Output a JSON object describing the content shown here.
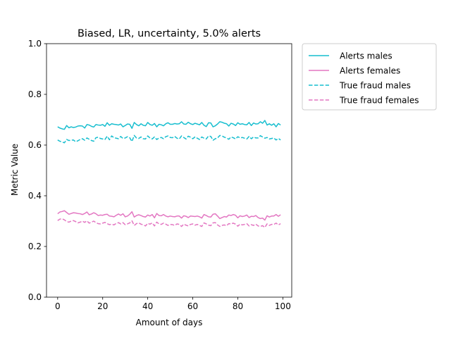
{
  "chart_data": {
    "type": "line",
    "title": "Biased, LR, uncertainty, 5.0% alerts",
    "xlabel": "Amount of days",
    "ylabel": "Metric Value",
    "xlim": [
      -4.95,
      103.95
    ],
    "ylim": [
      0.0,
      1.0
    ],
    "xticks": [
      0,
      20,
      40,
      60,
      80,
      100
    ],
    "xtick_labels": [
      "0",
      "20",
      "40",
      "60",
      "80",
      "100"
    ],
    "yticks": [
      0.0,
      0.2,
      0.4,
      0.6,
      0.8,
      1.0
    ],
    "ytick_labels": [
      "0.0",
      "0.2",
      "0.4",
      "0.6",
      "0.8",
      "1.0"
    ],
    "grid": false,
    "legend_position": "outside-upper-right",
    "colors": {
      "males": "#17becf",
      "females": "#e377c2"
    },
    "x": [
      0,
      1,
      2,
      3,
      4,
      5,
      6,
      7,
      8,
      9,
      10,
      11,
      12,
      13,
      14,
      15,
      16,
      17,
      18,
      19,
      20,
      21,
      22,
      23,
      24,
      25,
      26,
      27,
      28,
      29,
      30,
      31,
      32,
      33,
      34,
      35,
      36,
      37,
      38,
      39,
      40,
      41,
      42,
      43,
      44,
      45,
      46,
      47,
      48,
      49,
      50,
      51,
      52,
      53,
      54,
      55,
      56,
      57,
      58,
      59,
      60,
      61,
      62,
      63,
      64,
      65,
      66,
      67,
      68,
      69,
      70,
      71,
      72,
      73,
      74,
      75,
      76,
      77,
      78,
      79,
      80,
      81,
      82,
      83,
      84,
      85,
      86,
      87,
      88,
      89,
      90,
      91,
      92,
      93,
      94,
      95,
      96,
      97,
      98,
      99
    ],
    "series": [
      {
        "name": "Alerts males",
        "color": "#17becf",
        "linestyle": "solid",
        "values": [
          0.672,
          0.667,
          0.664,
          0.662,
          0.677,
          0.668,
          0.672,
          0.669,
          0.671,
          0.675,
          0.676,
          0.675,
          0.667,
          0.681,
          0.679,
          0.674,
          0.671,
          0.681,
          0.679,
          0.678,
          0.681,
          0.674,
          0.688,
          0.678,
          0.684,
          0.682,
          0.681,
          0.679,
          0.683,
          0.672,
          0.677,
          0.683,
          0.682,
          0.666,
          0.689,
          0.681,
          0.676,
          0.684,
          0.678,
          0.676,
          0.689,
          0.681,
          0.678,
          0.685,
          0.672,
          0.682,
          0.68,
          0.676,
          0.684,
          0.688,
          0.682,
          0.682,
          0.685,
          0.683,
          0.684,
          0.692,
          0.683,
          0.682,
          0.69,
          0.684,
          0.681,
          0.686,
          0.683,
          0.68,
          0.689,
          0.678,
          0.673,
          0.688,
          0.687,
          0.672,
          0.676,
          0.683,
          0.692,
          0.69,
          0.686,
          0.684,
          0.675,
          0.686,
          0.683,
          0.677,
          0.688,
          0.682,
          0.684,
          0.681,
          0.68,
          0.689,
          0.677,
          0.687,
          0.683,
          0.684,
          0.692,
          0.686,
          0.697,
          0.679,
          0.684,
          0.678,
          0.684,
          0.672,
          0.685,
          0.679
        ]
      },
      {
        "name": "Alerts females",
        "color": "#e377c2",
        "linestyle": "solid",
        "values": [
          0.329,
          0.336,
          0.338,
          0.341,
          0.334,
          0.327,
          0.33,
          0.333,
          0.332,
          0.33,
          0.329,
          0.326,
          0.33,
          0.336,
          0.325,
          0.328,
          0.333,
          0.329,
          0.322,
          0.324,
          0.323,
          0.326,
          0.327,
          0.32,
          0.319,
          0.317,
          0.323,
          0.328,
          0.323,
          0.329,
          0.317,
          0.32,
          0.327,
          0.337,
          0.316,
          0.322,
          0.325,
          0.322,
          0.318,
          0.316,
          0.324,
          0.32,
          0.326,
          0.313,
          0.33,
          0.322,
          0.321,
          0.326,
          0.32,
          0.317,
          0.32,
          0.318,
          0.317,
          0.32,
          0.32,
          0.312,
          0.321,
          0.319,
          0.314,
          0.32,
          0.319,
          0.318,
          0.32,
          0.317,
          0.312,
          0.326,
          0.322,
          0.317,
          0.316,
          0.327,
          0.329,
          0.32,
          0.31,
          0.314,
          0.318,
          0.316,
          0.324,
          0.322,
          0.326,
          0.323,
          0.313,
          0.321,
          0.318,
          0.32,
          0.324,
          0.314,
          0.319,
          0.318,
          0.322,
          0.314,
          0.31,
          0.312,
          0.304,
          0.321,
          0.316,
          0.32,
          0.32,
          0.326,
          0.319,
          0.325
        ]
      },
      {
        "name": "True fraud males",
        "color": "#17becf",
        "linestyle": "dashed",
        "values": [
          0.62,
          0.615,
          0.612,
          0.609,
          0.622,
          0.618,
          0.619,
          0.62,
          0.613,
          0.617,
          0.622,
          0.625,
          0.619,
          0.628,
          0.623,
          0.618,
          0.615,
          0.629,
          0.631,
          0.626,
          0.624,
          0.622,
          0.635,
          0.621,
          0.636,
          0.629,
          0.627,
          0.625,
          0.634,
          0.626,
          0.628,
          0.633,
          0.629,
          0.614,
          0.638,
          0.628,
          0.626,
          0.632,
          0.625,
          0.624,
          0.636,
          0.628,
          0.624,
          0.632,
          0.622,
          0.628,
          0.63,
          0.625,
          0.633,
          0.636,
          0.63,
          0.629,
          0.634,
          0.627,
          0.624,
          0.636,
          0.63,
          0.624,
          0.635,
          0.631,
          0.625,
          0.632,
          0.627,
          0.622,
          0.632,
          0.627,
          0.624,
          0.636,
          0.634,
          0.619,
          0.625,
          0.628,
          0.638,
          0.636,
          0.631,
          0.628,
          0.623,
          0.632,
          0.629,
          0.624,
          0.633,
          0.628,
          0.63,
          0.627,
          0.624,
          0.634,
          0.625,
          0.632,
          0.628,
          0.628,
          0.637,
          0.632,
          0.627,
          0.63,
          0.624,
          0.626,
          0.628,
          0.62,
          0.626,
          0.62
        ]
      },
      {
        "name": "True fraud females",
        "color": "#e377c2",
        "linestyle": "dashed",
        "values": [
          0.302,
          0.308,
          0.309,
          0.305,
          0.298,
          0.296,
          0.3,
          0.302,
          0.298,
          0.293,
          0.296,
          0.3,
          0.295,
          0.301,
          0.292,
          0.296,
          0.3,
          0.294,
          0.29,
          0.289,
          0.292,
          0.295,
          0.29,
          0.286,
          0.288,
          0.285,
          0.291,
          0.294,
          0.289,
          0.294,
          0.286,
          0.289,
          0.293,
          0.301,
          0.283,
          0.29,
          0.293,
          0.288,
          0.285,
          0.281,
          0.291,
          0.288,
          0.293,
          0.281,
          0.296,
          0.289,
          0.287,
          0.292,
          0.288,
          0.283,
          0.287,
          0.286,
          0.283,
          0.289,
          0.287,
          0.279,
          0.288,
          0.284,
          0.281,
          0.287,
          0.289,
          0.284,
          0.287,
          0.283,
          0.279,
          0.293,
          0.289,
          0.284,
          0.282,
          0.293,
          0.294,
          0.285,
          0.279,
          0.283,
          0.285,
          0.282,
          0.29,
          0.289,
          0.292,
          0.288,
          0.28,
          0.288,
          0.285,
          0.287,
          0.29,
          0.281,
          0.286,
          0.283,
          0.288,
          0.281,
          0.279,
          0.282,
          0.275,
          0.289,
          0.283,
          0.287,
          0.287,
          0.292,
          0.285,
          0.29
        ]
      }
    ]
  }
}
